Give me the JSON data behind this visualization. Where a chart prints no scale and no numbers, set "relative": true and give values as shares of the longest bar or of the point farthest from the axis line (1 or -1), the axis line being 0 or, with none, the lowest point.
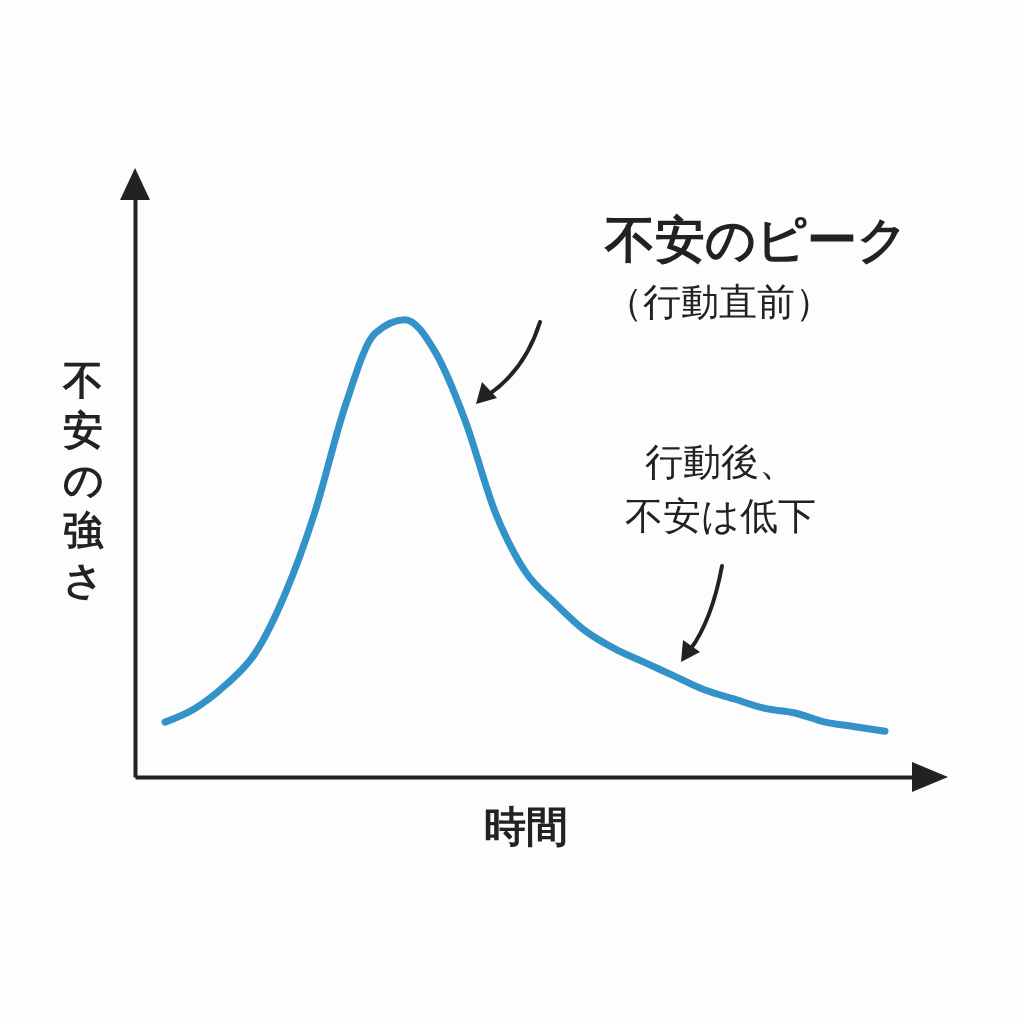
{
  "chart_data": {
    "type": "line",
    "relative": true,
    "xlabel": "時間",
    "ylabel": "不安の強さ",
    "tick_labels": false,
    "color": "#3393c9",
    "categories": [
      null,
      null,
      null,
      null,
      null,
      null,
      null,
      null,
      null,
      null,
      null,
      null,
      null,
      null,
      null,
      null,
      null,
      null,
      null,
      null,
      null,
      null,
      null,
      null,
      null
    ],
    "values": [
      0.12,
      0.15,
      0.2,
      0.27,
      0.4,
      0.58,
      0.81,
      0.97,
      1,
      0.93,
      0.78,
      0.58,
      0.45,
      0.38,
      0.32,
      0.28,
      0.25,
      0.22,
      0.19,
      0.17,
      0.15,
      0.14,
      0.12,
      0.11,
      0.1
    ],
    "annotations": [
      "不安のピーク",
      "（行動直前）",
      "行動後、",
      "不安は低下"
    ]
  }
}
